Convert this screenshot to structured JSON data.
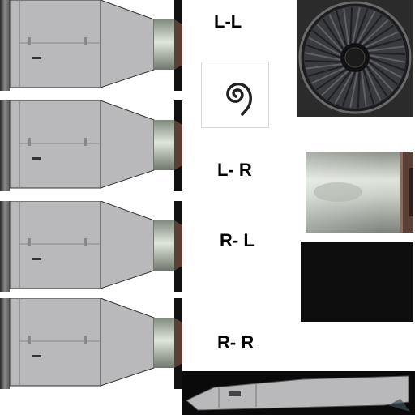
{
  "nacelles": [
    {
      "label": "L-L"
    },
    {
      "label": "L- R"
    },
    {
      "label": "R- L"
    },
    {
      "label": "R- R"
    }
  ],
  "colors": {
    "nacelle_body": "#b9b9bb",
    "nacelle_outline": "#333333",
    "background": "#ffffff",
    "black_panel": "#0e0e0e",
    "fan_dark": "#2b2b2b"
  },
  "icons": {
    "fan": "turbofan-intake-icon",
    "swirl": "spinner-swirl-icon"
  }
}
